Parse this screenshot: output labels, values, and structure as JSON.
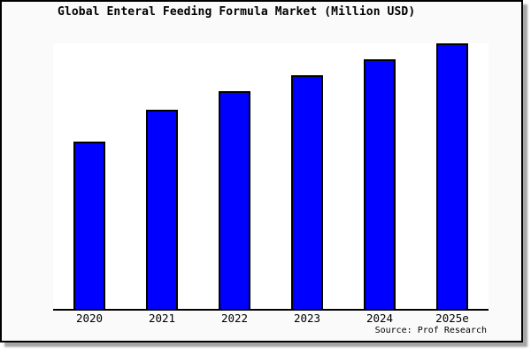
{
  "title": "Global Enteral Feeding Formula Market (Million USD)",
  "source_credit": "Source: Prof Research",
  "colors": {
    "bar_fill": "#0000ff",
    "bar_border": "#000000",
    "frame_background": "#fafafa",
    "plot_background": "#ffffff",
    "axis_line": "#000000",
    "text": "#000000",
    "frame_border": "#000000",
    "shadow": "#a6a6a6"
  },
  "chart_data": {
    "type": "bar",
    "title": "Global Enteral Feeding Formula Market (Million USD)",
    "categories": [
      "2020",
      "2021",
      "2022",
      "2023",
      "2024",
      "2025e"
    ],
    "values": [
      63,
      75,
      82,
      88,
      94,
      100
    ],
    "values_unit": "relative height, max bar = 100 (no y-axis scale shown in image)",
    "xlabel": "",
    "ylabel": "",
    "ylim": [
      0,
      100
    ],
    "grid": false,
    "legend": false,
    "y_axis_shown": false,
    "annotation": "Source: Prof Research"
  }
}
